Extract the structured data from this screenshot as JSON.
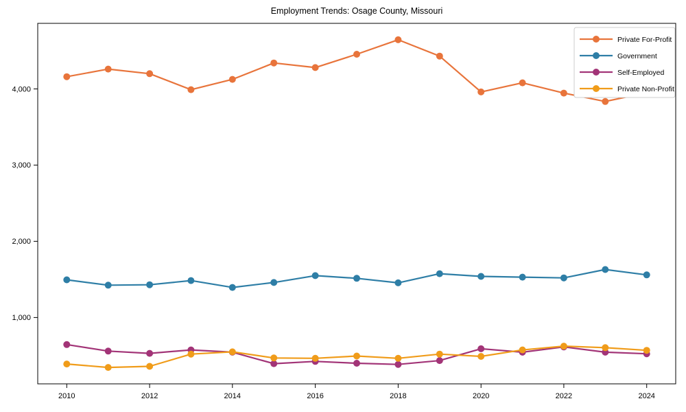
{
  "title": "Employment Trends: Osage County, Missouri",
  "chart_data": {
    "type": "line",
    "title": "Employment Trends: Osage County, Missouri",
    "xlabel": "",
    "ylabel": "",
    "x": [
      2010,
      2011,
      2012,
      2013,
      2014,
      2015,
      2016,
      2017,
      2018,
      2019,
      2020,
      2021,
      2022,
      2023,
      2024
    ],
    "series": [
      {
        "name": "Private For-Profit",
        "color": "#e8743b",
        "values": [
          4160,
          4260,
          4200,
          3990,
          4125,
          4340,
          4280,
          4455,
          4645,
          4430,
          3960,
          4080,
          3945,
          3835,
          3950
        ]
      },
      {
        "name": "Government",
        "color": "#2e7ea6",
        "values": [
          1495,
          1425,
          1430,
          1485,
          1395,
          1460,
          1550,
          1515,
          1455,
          1575,
          1540,
          1530,
          1520,
          1630,
          1560
        ]
      },
      {
        "name": "Self-Employed",
        "color": "#a23477",
        "values": [
          645,
          560,
          530,
          575,
          545,
          395,
          425,
          400,
          385,
          435,
          590,
          545,
          615,
          545,
          525
        ]
      },
      {
        "name": "Private Non-Profit",
        "color": "#f09c1a",
        "values": [
          390,
          345,
          360,
          520,
          550,
          470,
          465,
          495,
          465,
          520,
          490,
          575,
          625,
          605,
          570
        ]
      }
    ],
    "xticks": [
      2010,
      2012,
      2014,
      2016,
      2018,
      2020,
      2022,
      2024
    ],
    "yticks": [
      1000,
      2000,
      3000,
      4000
    ],
    "ytick_labels": [
      "1,000",
      "2,000",
      "3,000",
      "4,000"
    ],
    "xlim": [
      2009.3,
      2024.7
    ],
    "ylim": [
      130,
      4860
    ],
    "grid": false,
    "legend_position": "upper right",
    "legend_labels": [
      "Private For-Profit",
      "Government",
      "Self-Employed",
      "Private Non-Profit"
    ]
  }
}
